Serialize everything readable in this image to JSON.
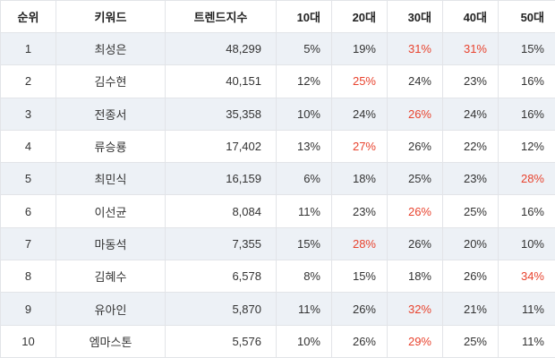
{
  "colors": {
    "highlight": "#e8432e",
    "row_alt": "#edf1f6",
    "border": "#e2e4e8",
    "text": "#333333"
  },
  "chart_data": {
    "type": "table",
    "columns": [
      "순위",
      "키워드",
      "트렌드지수",
      "10대",
      "20대",
      "30대",
      "40대",
      "50대"
    ],
    "rows": [
      {
        "rank": "1",
        "keyword": "최성은",
        "trend_index": "48,299",
        "ages": [
          "5%",
          "19%",
          "31%",
          "31%",
          "15%"
        ],
        "highlighted_age_indexes": [
          2,
          3
        ]
      },
      {
        "rank": "2",
        "keyword": "김수현",
        "trend_index": "40,151",
        "ages": [
          "12%",
          "25%",
          "24%",
          "23%",
          "16%"
        ],
        "highlighted_age_indexes": [
          1
        ]
      },
      {
        "rank": "3",
        "keyword": "전종서",
        "trend_index": "35,358",
        "ages": [
          "10%",
          "24%",
          "26%",
          "24%",
          "16%"
        ],
        "highlighted_age_indexes": [
          2
        ]
      },
      {
        "rank": "4",
        "keyword": "류승룡",
        "trend_index": "17,402",
        "ages": [
          "13%",
          "27%",
          "26%",
          "22%",
          "12%"
        ],
        "highlighted_age_indexes": [
          1
        ]
      },
      {
        "rank": "5",
        "keyword": "최민식",
        "trend_index": "16,159",
        "ages": [
          "6%",
          "18%",
          "25%",
          "23%",
          "28%"
        ],
        "highlighted_age_indexes": [
          4
        ]
      },
      {
        "rank": "6",
        "keyword": "이선균",
        "trend_index": "8,084",
        "ages": [
          "11%",
          "23%",
          "26%",
          "25%",
          "16%"
        ],
        "highlighted_age_indexes": [
          2
        ]
      },
      {
        "rank": "7",
        "keyword": "마동석",
        "trend_index": "7,355",
        "ages": [
          "15%",
          "28%",
          "26%",
          "20%",
          "10%"
        ],
        "highlighted_age_indexes": [
          1
        ]
      },
      {
        "rank": "8",
        "keyword": "김혜수",
        "trend_index": "6,578",
        "ages": [
          "8%",
          "15%",
          "18%",
          "26%",
          "34%"
        ],
        "highlighted_age_indexes": [
          4
        ]
      },
      {
        "rank": "9",
        "keyword": "유아인",
        "trend_index": "5,870",
        "ages": [
          "11%",
          "26%",
          "32%",
          "21%",
          "11%"
        ],
        "highlighted_age_indexes": [
          2
        ]
      },
      {
        "rank": "10",
        "keyword": "엠마스톤",
        "trend_index": "5,576",
        "ages": [
          "10%",
          "26%",
          "29%",
          "25%",
          "11%"
        ],
        "highlighted_age_indexes": [
          2
        ]
      }
    ]
  }
}
